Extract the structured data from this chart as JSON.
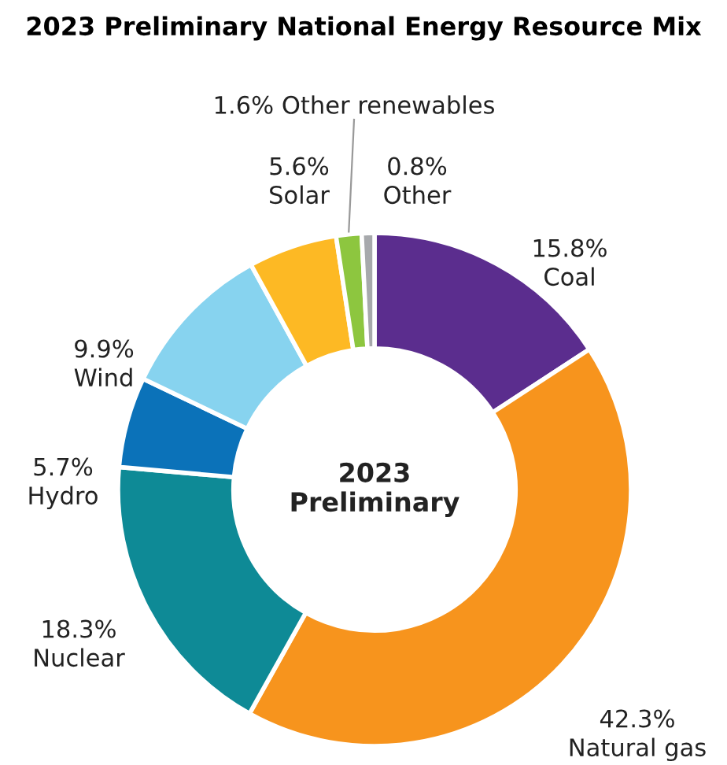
{
  "chart_data": {
    "type": "donut",
    "title": "2023 Preliminary National Energy Resource Mix",
    "categories": [
      "Coal",
      "Natural gas",
      "Nuclear",
      "Hydro",
      "Wind",
      "Solar",
      "Other renewables",
      "Other"
    ],
    "values": [
      15.8,
      42.3,
      18.3,
      5.7,
      9.9,
      5.6,
      1.6,
      0.8
    ],
    "value_labels": [
      "15.8%",
      "42.3%",
      "18.3%",
      "5.7%",
      "9.9%",
      "5.6%",
      "1.6%",
      "0.8%"
    ],
    "colors": [
      "#5b2d8e",
      "#f7941d",
      "#0e8a96",
      "#0b72b9",
      "#87d3ef",
      "#fdb924",
      "#8dc63f",
      "#a7a9ac"
    ],
    "annotations": [
      "2023\nPreliminary"
    ]
  }
}
